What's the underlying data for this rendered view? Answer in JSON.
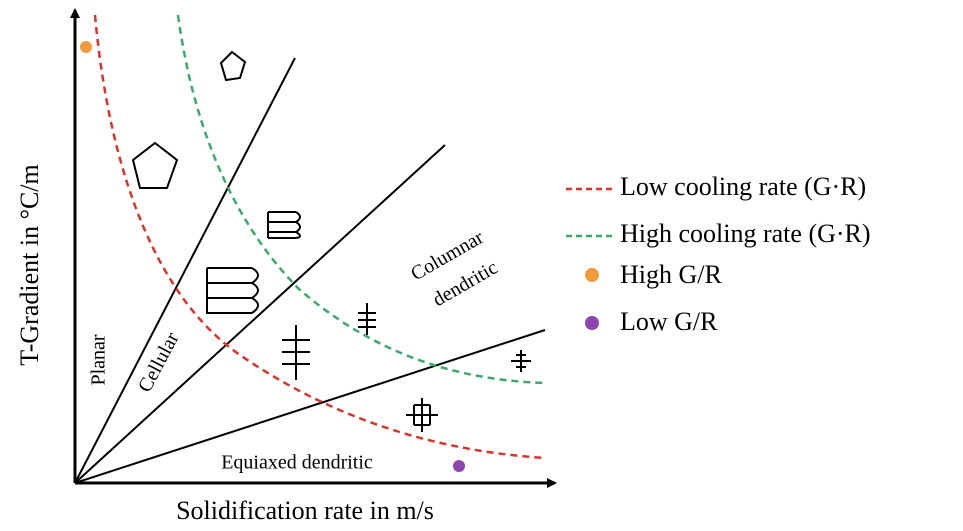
{
  "axes": {
    "x_label": "Solidification rate in m/s",
    "y_label": "T-Gradient in °C/m"
  },
  "regions": {
    "planar": "Planar",
    "cellular": "Cellular",
    "columnar_1": "Columnar",
    "columnar_2": "dendritic",
    "equiaxed": "Equiaxed dendritic"
  },
  "legend": [
    "Low cooling rate (G·R)",
    "High cooling rate (G·R)",
    "High G/R",
    "Low G/R"
  ]
}
